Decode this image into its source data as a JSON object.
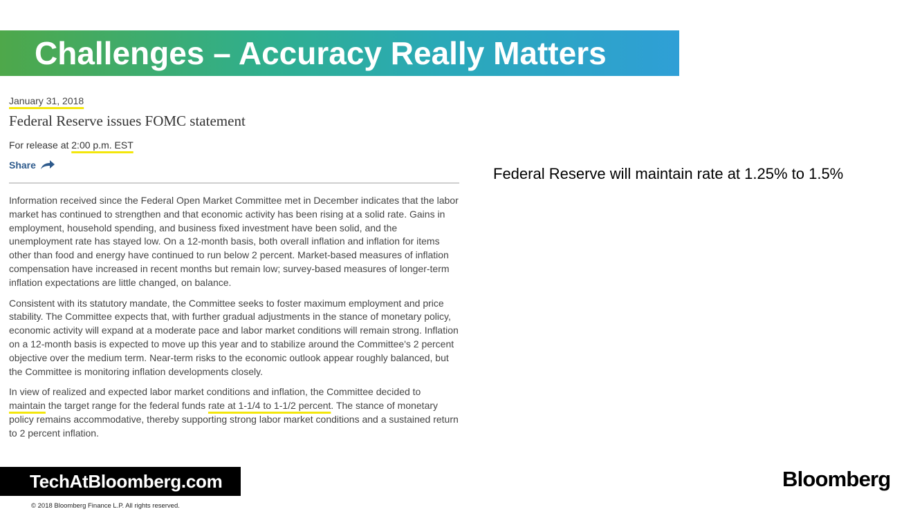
{
  "slide": {
    "title": "Challenges – Accuracy Really Matters",
    "colors": {
      "gradient_start": "#4ea84a",
      "gradient_end": "#2f9fd6",
      "highlight": "#f3e60a"
    }
  },
  "document": {
    "date": "January 31, 2018",
    "headline": "Federal Reserve issues FOMC statement",
    "release_prefix": "For release at ",
    "release_time": "2:00 p.m. EST",
    "share_label": "Share",
    "share_icon": "share-arrow-icon",
    "paragraph1": "Information received since the Federal Open Market Committee met in December indicates that the labor market has continued to strengthen and that economic activity has been rising at a solid rate. Gains in employment, household spending, and business fixed investment have been solid, and the unemployment rate has stayed low. On a 12-month basis, both overall inflation and inflation for items other than food and energy have continued to run below 2 percent. Market-based measures of inflation compensation have increased in recent months but remain low; survey-based measures of longer-term inflation expectations are little changed, on balance.",
    "paragraph2": "Consistent with its statutory mandate, the Committee seeks to foster maximum employment and price stability. The Committee expects that, with further gradual adjustments in the stance of monetary policy, economic activity will expand at a moderate pace and labor market conditions will remain strong. Inflation on a 12-month basis is expected to move up this year and to stabilize around the Committee's 2 percent objective over the medium term. Near-term risks to the economic outlook appear roughly balanced, but the Committee is monitoring inflation developments closely.",
    "paragraph3": {
      "part1": "In view of realized and expected labor market conditions and inflation, the Committee decided to ",
      "highlight_maintain": "maintain",
      "part2": " the target range for the federal funds ",
      "highlight_rate": "rate at 1-1/4 to 1-1/2 percent",
      "part3": ". The stance of monetary policy remains accommodative, thereby supporting strong labor market conditions and a sustained return to 2 percent inflation."
    }
  },
  "callout": "Federal Reserve will maintain rate at 1.25% to 1.5%",
  "footer": {
    "badge": "TechAtBloomberg.com",
    "copyright": "© 2018 Bloomberg Finance L.P. All rights reserved.",
    "logo": "Bloomberg"
  }
}
